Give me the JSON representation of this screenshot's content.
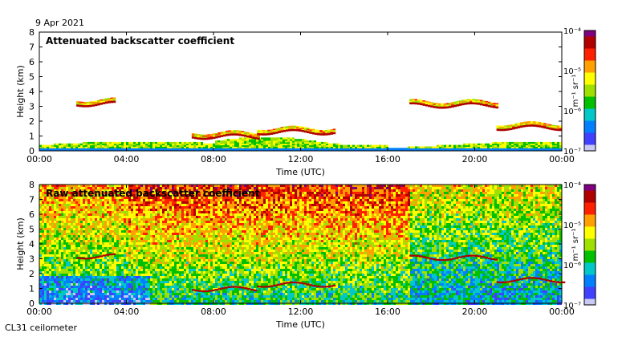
{
  "header": {
    "date": "9 Apr 2021"
  },
  "footer": {
    "instrument": "CL31 ceilometer"
  },
  "colors": {
    "sky_blue": "#eef3fb",
    "scale": [
      "#c9c9f3",
      "#4040ff",
      "#0080ff",
      "#00c8c8",
      "#00c000",
      "#a0e000",
      "#ffff00",
      "#ffa000",
      "#ff2000",
      "#b00000",
      "#800080"
    ]
  },
  "chart_data": [
    {
      "type": "heatmap",
      "title": "Attenuated backscatter coefficient",
      "xlabel": "Time (UTC)",
      "ylabel": "Height (km)",
      "x_ticks": [
        "00:00",
        "04:00",
        "08:00",
        "12:00",
        "16:00",
        "20:00",
        "00:00"
      ],
      "x_range_hours": [
        0,
        24
      ],
      "y_ticks": [
        "0",
        "1",
        "2",
        "3",
        "4",
        "5",
        "6",
        "7",
        "8"
      ],
      "ylim_km": [
        0,
        8
      ],
      "colorbar": {
        "unit": "m⁻¹ sr⁻¹",
        "ticks": [
          "10⁻⁴",
          "10⁻⁵",
          "10⁻⁶",
          "10⁻⁷"
        ],
        "range_log10": [
          -7,
          -4
        ]
      },
      "features": {
        "boundary_layer_top_km": 0.3,
        "cloud_layers": [
          {
            "t_start_h": 1.7,
            "t_end_h": 3.4,
            "height_km": 3.1
          },
          {
            "t_start_h": 7.0,
            "t_end_h": 10.0,
            "height_km": 0.9
          },
          {
            "t_start_h": 10.0,
            "t_end_h": 13.5,
            "height_km": 1.2
          },
          {
            "t_start_h": 17.0,
            "t_end_h": 21.0,
            "height_km": 3.0
          },
          {
            "t_start_h": 21.0,
            "t_end_h": 24.0,
            "height_km": 1.5
          }
        ]
      }
    },
    {
      "type": "heatmap",
      "title": "Raw attenuated backscatter coefficient",
      "xlabel": "Time (UTC)",
      "ylabel": "Height (km)",
      "x_ticks": [
        "00:00",
        "04:00",
        "08:00",
        "12:00",
        "16:00",
        "20:00",
        "00:00"
      ],
      "x_range_hours": [
        0,
        24
      ],
      "y_ticks": [
        "0",
        "1",
        "2",
        "3",
        "4",
        "5",
        "6",
        "7",
        "8"
      ],
      "ylim_km": [
        0,
        8
      ],
      "colorbar": {
        "unit": "m⁻¹ sr⁻¹",
        "ticks": [
          "10⁻⁴",
          "10⁻⁵",
          "10⁻⁶",
          "10⁻⁷"
        ],
        "range_log10": [
          -7,
          -4
        ]
      }
    }
  ]
}
